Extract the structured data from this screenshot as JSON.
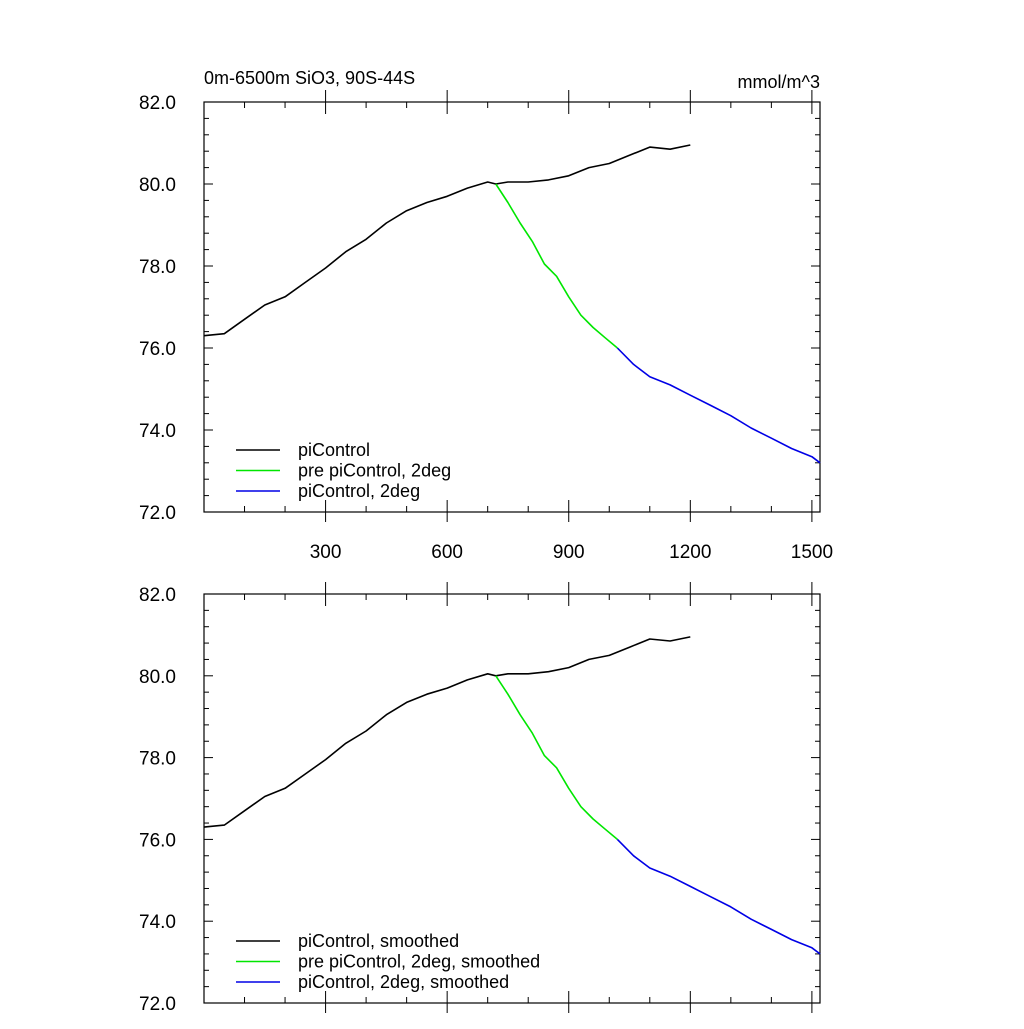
{
  "chart_data": [
    {
      "type": "line",
      "title": "0m-6500m SiO3, 90S-44S",
      "units": "mmol/m^3",
      "xlim": [
        0,
        1520
      ],
      "ylim": [
        72.0,
        82.0
      ],
      "y_ticks": [
        "72.0",
        "74.0",
        "76.0",
        "78.0",
        "80.0",
        "82.0"
      ],
      "x_ticks": [
        "300",
        "600",
        "900",
        "1200",
        "1500"
      ],
      "legend_position": "bottom-left",
      "grid": false,
      "series": [
        {
          "name": "piControl",
          "color": "#000000",
          "x": [
            0,
            50,
            100,
            150,
            200,
            250,
            300,
            350,
            400,
            450,
            500,
            550,
            600,
            650,
            700,
            720,
            750,
            800,
            850,
            900,
            950,
            1000,
            1050,
            1100,
            1150,
            1200
          ],
          "y": [
            76.3,
            76.35,
            76.7,
            77.05,
            77.25,
            77.6,
            77.95,
            78.35,
            78.65,
            79.05,
            79.35,
            79.55,
            79.7,
            79.9,
            80.05,
            80.0,
            80.05,
            80.05,
            80.1,
            80.2,
            80.4,
            80.5,
            80.7,
            80.9,
            80.85,
            80.95
          ]
        },
        {
          "name": "pre piControl, 2deg",
          "color": "#00e600",
          "x": [
            720,
            750,
            780,
            810,
            840,
            870,
            900,
            930,
            960,
            990,
            1020
          ],
          "y": [
            80.0,
            79.55,
            79.05,
            78.6,
            78.05,
            77.75,
            77.25,
            76.8,
            76.5,
            76.25,
            76.0
          ]
        },
        {
          "name": "piControl, 2deg",
          "color": "#0000e6",
          "x": [
            1020,
            1060,
            1100,
            1150,
            1200,
            1250,
            1300,
            1350,
            1400,
            1450,
            1500,
            1520
          ],
          "y": [
            76.0,
            75.6,
            75.3,
            75.1,
            74.85,
            74.6,
            74.35,
            74.05,
            73.8,
            73.55,
            73.35,
            73.2
          ]
        }
      ]
    },
    {
      "type": "line",
      "title": "",
      "units": "",
      "xlim": [
        0,
        1520
      ],
      "ylim": [
        72.0,
        82.0
      ],
      "y_ticks": [
        "72.0",
        "74.0",
        "76.0",
        "78.0",
        "80.0",
        "82.0"
      ],
      "x_ticks": [],
      "legend_position": "bottom-left",
      "grid": false,
      "series": [
        {
          "name": "piControl, smoothed",
          "color": "#000000",
          "x": [
            0,
            50,
            100,
            150,
            200,
            250,
            300,
            350,
            400,
            450,
            500,
            550,
            600,
            650,
            700,
            720,
            750,
            800,
            850,
            900,
            950,
            1000,
            1050,
            1100,
            1150,
            1200
          ],
          "y": [
            76.3,
            76.35,
            76.7,
            77.05,
            77.25,
            77.6,
            77.95,
            78.35,
            78.65,
            79.05,
            79.35,
            79.55,
            79.7,
            79.9,
            80.05,
            80.0,
            80.05,
            80.05,
            80.1,
            80.2,
            80.4,
            80.5,
            80.7,
            80.9,
            80.85,
            80.95
          ]
        },
        {
          "name": "pre piControl, 2deg, smoothed",
          "color": "#00e600",
          "x": [
            720,
            750,
            780,
            810,
            840,
            870,
            900,
            930,
            960,
            990,
            1020
          ],
          "y": [
            80.0,
            79.55,
            79.05,
            78.6,
            78.05,
            77.75,
            77.25,
            76.8,
            76.5,
            76.25,
            76.0
          ]
        },
        {
          "name": "piControl, 2deg, smoothed",
          "color": "#0000e6",
          "x": [
            1020,
            1060,
            1100,
            1150,
            1200,
            1250,
            1300,
            1350,
            1400,
            1450,
            1500,
            1520
          ],
          "y": [
            76.0,
            75.6,
            75.3,
            75.1,
            74.85,
            74.6,
            74.35,
            74.05,
            73.8,
            73.55,
            73.35,
            73.2
          ]
        }
      ]
    }
  ]
}
